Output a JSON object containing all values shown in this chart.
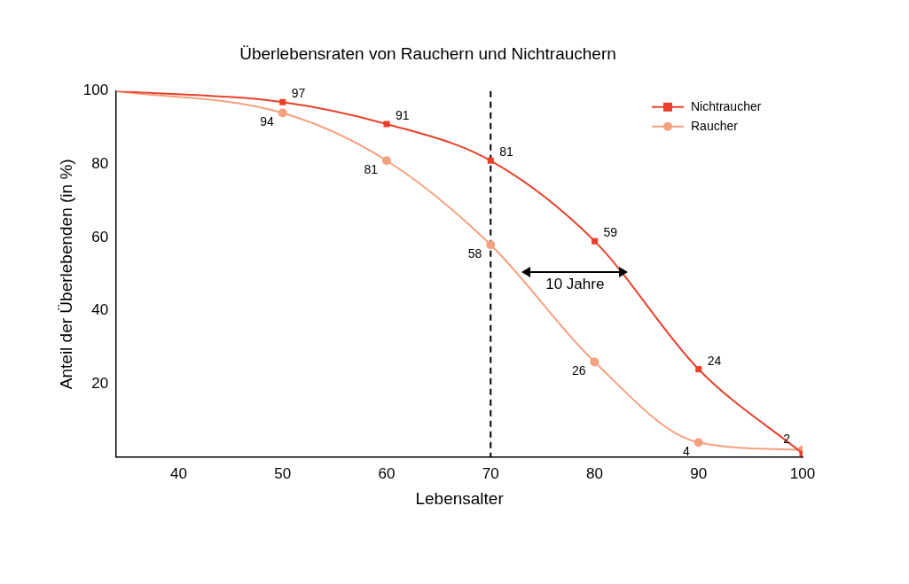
{
  "chart_data": {
    "type": "line",
    "title": "Überlebensraten von Rauchern und Nichtrauchern",
    "xlabel": "Lebensalter",
    "ylabel": "Anteil der Überlebenden (in %)",
    "xlim": [
      34,
      100
    ],
    "xticks": [
      40,
      50,
      60,
      70,
      80,
      90,
      100
    ],
    "ylim": [
      0,
      100
    ],
    "yticks": [
      20,
      40,
      60,
      80,
      100
    ],
    "grid": false,
    "legend": "top right",
    "series": [
      {
        "type": "line",
        "marker": "none",
        "color": "#e8402a",
        "x": [
          34,
          50,
          60,
          70,
          80,
          90,
          100
        ],
        "values": [
          100,
          97,
          91,
          81,
          59,
          24,
          1
        ]
      },
      {
        "type": "line",
        "marker": "none",
        "color": "#f5a07f",
        "x": [
          34,
          50,
          60,
          70,
          80,
          90,
          100
        ],
        "values": [
          100,
          94,
          81,
          58,
          26,
          4,
          2
        ]
      },
      {
        "type": "scatter",
        "marker": "square",
        "name": "Nichtraucher",
        "color": "#e8402a",
        "x": [
          50,
          60,
          70,
          80,
          90,
          100
        ],
        "values": [
          97,
          91,
          81,
          59,
          24,
          1
        ],
        "value_labels": [
          "97",
          "91",
          "81",
          "59",
          "24",
          null
        ]
      },
      {
        "type": "scatter",
        "marker": "circle",
        "name": "Raucher",
        "color": "#f5a07f",
        "x": [
          50,
          60,
          70,
          80,
          90,
          100
        ],
        "values": [
          94,
          81,
          58,
          26,
          4,
          2
        ],
        "value_labels": [
          "94",
          "81",
          "58",
          "26",
          "4",
          "2"
        ]
      }
    ],
    "ref_lines": [
      {
        "axis": "x",
        "value": 70,
        "line_style": "dashed",
        "color": "#000000"
      }
    ],
    "annotations": [
      "10 Jahre"
    ]
  }
}
